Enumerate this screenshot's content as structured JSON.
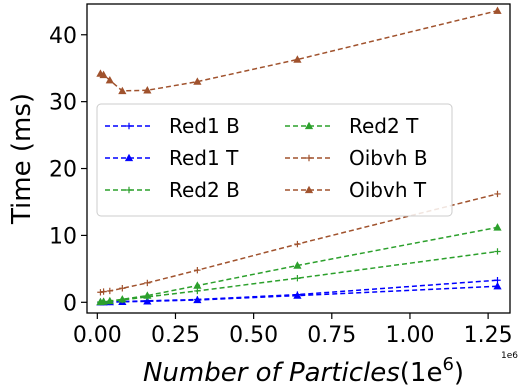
{
  "chart_data": {
    "type": "line",
    "xlabel_main": "Number of Particles",
    "xlabel_paren_open": "(1e",
    "xlabel_sup": "6",
    "xlabel_paren_close": ")",
    "ylabel": "Time (ms)",
    "x_offset_text": "1e6",
    "xlim": [
      -0.033,
      1.32
    ],
    "ylim": [
      -1.6,
      44.6
    ],
    "x_ticks": [
      0.0,
      0.25,
      0.5,
      0.75,
      1.0,
      1.25
    ],
    "x_tick_labels": [
      "0.00",
      "0.25",
      "0.50",
      "0.75",
      "1.00",
      "1.25"
    ],
    "y_ticks": [
      0,
      10,
      20,
      30,
      40
    ],
    "y_tick_labels": [
      "0",
      "10",
      "20",
      "30",
      "40"
    ],
    "grid": false,
    "legend_position": "center-left",
    "x": [
      0.01,
      0.02,
      0.04,
      0.08,
      0.16,
      0.32,
      0.64,
      1.28
    ],
    "series": [
      {
        "name": "Red1 B",
        "color": "#0000ff",
        "marker": "plus",
        "values": [
          0.02,
          0.04,
          0.06,
          0.12,
          0.22,
          0.42,
          1.15,
          3.3
        ]
      },
      {
        "name": "Red1 T",
        "color": "#0000ff",
        "marker": "triangle",
        "values": [
          0.01,
          0.02,
          0.03,
          0.08,
          0.15,
          0.35,
          1.0,
          2.4
        ]
      },
      {
        "name": "Red2 B",
        "color": "#2ca02c",
        "marker": "plus",
        "values": [
          0.05,
          0.1,
          0.18,
          0.35,
          0.8,
          1.7,
          3.6,
          7.6
        ]
      },
      {
        "name": "Red2 T",
        "color": "#2ca02c",
        "marker": "triangle",
        "values": [
          0.05,
          0.1,
          0.2,
          0.45,
          1.0,
          2.5,
          5.5,
          11.2
        ]
      },
      {
        "name": "Oibvh B",
        "color": "#a0522d",
        "marker": "plus",
        "values": [
          1.5,
          1.6,
          1.7,
          2.1,
          2.9,
          4.8,
          8.7,
          16.2
        ]
      },
      {
        "name": "Oibvh T",
        "color": "#a0522d",
        "marker": "triangle",
        "values": [
          34.2,
          34.0,
          33.2,
          31.6,
          31.7,
          33.0,
          36.3,
          43.6
        ]
      }
    ]
  }
}
